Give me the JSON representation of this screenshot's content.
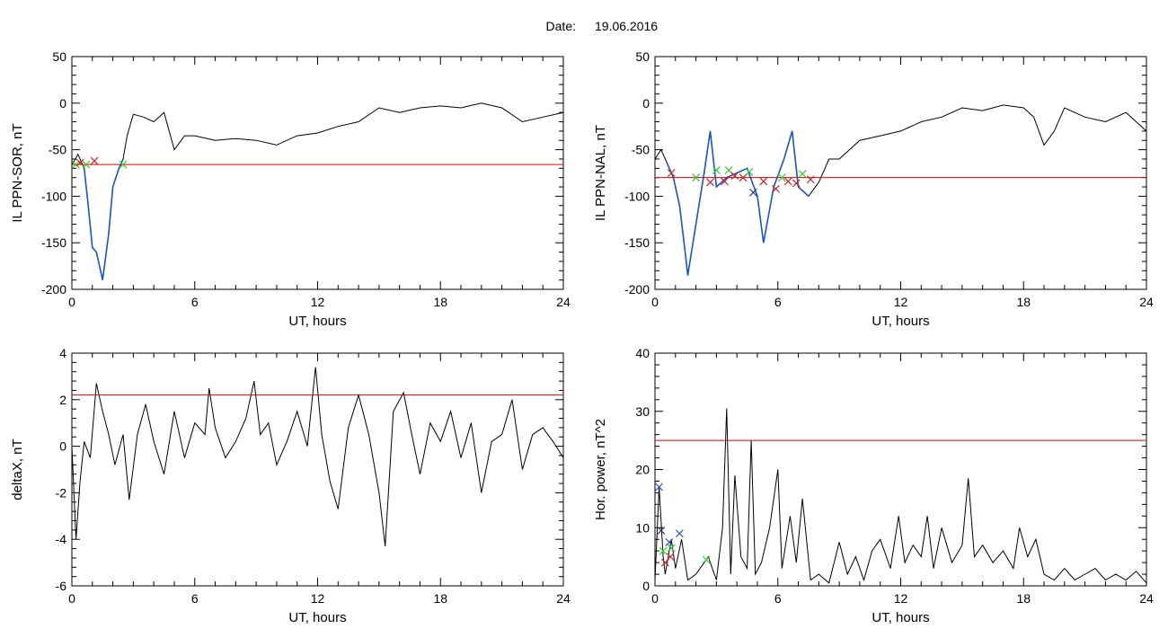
{
  "header": {
    "label": "Date:",
    "value": "19.06.2016"
  },
  "colors": {
    "data": "#000000",
    "threshold": "#e00000",
    "highlight": "#1a55c8",
    "marker_red": "#cc2222",
    "marker_green": "#33cc33",
    "marker_navy": "#2a2a88",
    "marker_blue": "#3355dd"
  },
  "chart_data": [
    {
      "id": "sor",
      "type": "line",
      "title": "",
      "xlabel": "UT, hours",
      "ylabel": "IL PPN-SOR, nT",
      "xlim": [
        0,
        24
      ],
      "ylim": [
        -200,
        50
      ],
      "xticks": [
        0,
        6,
        12,
        18,
        24
      ],
      "yticks": [
        50,
        0,
        -50,
        -100,
        -150,
        -200
      ],
      "grid": false,
      "threshold": -66,
      "x": [
        0.0,
        0.3,
        0.6,
        0.8,
        1.0,
        1.2,
        1.5,
        1.8,
        2.0,
        2.3,
        2.5,
        2.7,
        3.0,
        3.5,
        4.0,
        4.5,
        5.0,
        5.5,
        6.0,
        7.0,
        8.0,
        9.0,
        10.0,
        11.0,
        12.0,
        13.0,
        14.0,
        15.0,
        16.0,
        17.0,
        18.0,
        19.0,
        20.0,
        21.0,
        22.0,
        23.0,
        24.0
      ],
      "y": [
        -66,
        -55,
        -70,
        -110,
        -155,
        -160,
        -190,
        -140,
        -90,
        -70,
        -60,
        -35,
        -12,
        -15,
        -20,
        -10,
        -50,
        -35,
        -35,
        -40,
        -38,
        -40,
        -45,
        -35,
        -32,
        -25,
        -20,
        -5,
        -10,
        -5,
        -3,
        -5,
        0,
        -5,
        -20,
        -15,
        -10
      ],
      "highlight_range": [
        0.6,
        2.5
      ],
      "markers": [
        {
          "x": 0.2,
          "y": -66,
          "color": "marker_green"
        },
        {
          "x": 0.4,
          "y": -64,
          "color": "marker_red"
        },
        {
          "x": 0.7,
          "y": -66,
          "color": "marker_green"
        },
        {
          "x": 1.1,
          "y": -62,
          "color": "marker_red"
        },
        {
          "x": 2.5,
          "y": -66,
          "color": "marker_green"
        }
      ]
    },
    {
      "id": "nal",
      "type": "line",
      "title": "",
      "xlabel": "UT, hours",
      "ylabel": "IL PPN-NAL, nT",
      "xlim": [
        0,
        24
      ],
      "ylim": [
        -200,
        50
      ],
      "xticks": [
        0,
        6,
        12,
        18,
        24
      ],
      "yticks": [
        50,
        0,
        -50,
        -100,
        -150,
        -200
      ],
      "grid": false,
      "threshold": -80,
      "x": [
        0.0,
        0.3,
        0.6,
        0.9,
        1.2,
        1.5,
        1.6,
        2.0,
        2.4,
        2.7,
        3.0,
        3.5,
        4.0,
        4.5,
        5.0,
        5.3,
        5.8,
        6.3,
        6.7,
        7.0,
        7.5,
        8.0,
        8.5,
        9.0,
        10.0,
        11.0,
        12.0,
        13.0,
        14.0,
        15.0,
        16.0,
        17.0,
        18.0,
        18.5,
        19.0,
        19.5,
        20.0,
        21.0,
        22.0,
        23.0,
        24.0
      ],
      "y": [
        -60,
        -50,
        -65,
        -80,
        -110,
        -165,
        -185,
        -130,
        -75,
        -30,
        -90,
        -80,
        -75,
        -70,
        -100,
        -150,
        -90,
        -60,
        -30,
        -90,
        -100,
        -85,
        -60,
        -60,
        -40,
        -35,
        -30,
        -20,
        -15,
        -5,
        -8,
        -2,
        -5,
        -15,
        -45,
        -30,
        -5,
        -15,
        -20,
        -10,
        -30
      ],
      "highlight_range": [
        0.6,
        7.8
      ],
      "markers": [
        {
          "x": 0.8,
          "y": -75,
          "color": "marker_red"
        },
        {
          "x": 2.0,
          "y": -80,
          "color": "marker_green"
        },
        {
          "x": 2.7,
          "y": -85,
          "color": "marker_red"
        },
        {
          "x": 3.0,
          "y": -72,
          "color": "marker_green"
        },
        {
          "x": 3.4,
          "y": -84,
          "color": "marker_red"
        },
        {
          "x": 3.6,
          "y": -72,
          "color": "marker_green"
        },
        {
          "x": 3.9,
          "y": -78,
          "color": "marker_red"
        },
        {
          "x": 4.3,
          "y": -80,
          "color": "marker_red"
        },
        {
          "x": 4.6,
          "y": -74,
          "color": "marker_green"
        },
        {
          "x": 4.8,
          "y": -96,
          "color": "marker_navy"
        },
        {
          "x": 5.3,
          "y": -84,
          "color": "marker_red"
        },
        {
          "x": 5.9,
          "y": -92,
          "color": "marker_red"
        },
        {
          "x": 6.2,
          "y": -80,
          "color": "marker_green"
        },
        {
          "x": 6.5,
          "y": -84,
          "color": "marker_red"
        },
        {
          "x": 6.9,
          "y": -86,
          "color": "marker_red"
        },
        {
          "x": 7.2,
          "y": -76,
          "color": "marker_green"
        },
        {
          "x": 7.6,
          "y": -82,
          "color": "marker_red"
        }
      ]
    },
    {
      "id": "deltax",
      "type": "line",
      "title": "",
      "xlabel": "UT, hours",
      "ylabel": "deltaX, nT",
      "xlim": [
        0,
        24
      ],
      "ylim": [
        -6,
        4
      ],
      "xticks": [
        0,
        6,
        12,
        18,
        24
      ],
      "yticks": [
        4,
        2,
        0,
        -2,
        -4,
        -6
      ],
      "grid": false,
      "threshold": 2.2,
      "x": [
        0.0,
        0.2,
        0.4,
        0.6,
        0.9,
        1.2,
        1.5,
        1.8,
        2.1,
        2.5,
        2.8,
        3.2,
        3.6,
        4.0,
        4.5,
        5.0,
        5.5,
        6.0,
        6.5,
        6.7,
        7.0,
        7.5,
        8.0,
        8.5,
        8.9,
        9.2,
        9.6,
        10.0,
        10.5,
        11.0,
        11.5,
        11.9,
        12.2,
        12.6,
        13.0,
        13.5,
        14.0,
        14.5,
        15.0,
        15.3,
        15.7,
        16.2,
        16.6,
        17.0,
        17.5,
        18.0,
        18.5,
        19.0,
        19.5,
        20.0,
        20.5,
        21.0,
        21.5,
        22.0,
        22.5,
        23.0,
        23.5,
        24.0
      ],
      "y": [
        0.0,
        -4.0,
        -1.5,
        0.2,
        -0.5,
        2.7,
        1.5,
        0.5,
        -0.8,
        0.5,
        -2.3,
        0.5,
        1.8,
        0.2,
        -1.2,
        1.5,
        -0.5,
        1.0,
        0.5,
        2.5,
        0.8,
        -0.5,
        0.2,
        1.2,
        2.8,
        0.5,
        1.0,
        -0.8,
        0.2,
        1.5,
        0.0,
        3.4,
        0.5,
        -1.5,
        -2.7,
        0.8,
        2.2,
        0.5,
        -2.0,
        -4.3,
        1.5,
        2.3,
        0.5,
        -1.2,
        1.0,
        0.2,
        1.5,
        -0.5,
        1.0,
        -2.0,
        0.2,
        0.5,
        2.0,
        -1.0,
        0.5,
        0.8,
        0.2,
        -0.5
      ]
    },
    {
      "id": "power",
      "type": "line",
      "title": "",
      "xlabel": "UT, hours",
      "ylabel": "Hor. power, nT^2",
      "xlim": [
        0,
        24
      ],
      "ylim": [
        0,
        40
      ],
      "xticks": [
        0,
        6,
        12,
        18,
        24
      ],
      "yticks": [
        40,
        30,
        20,
        10,
        0
      ],
      "grid": false,
      "threshold": 25,
      "x": [
        0.0,
        0.2,
        0.4,
        0.5,
        0.8,
        1.0,
        1.3,
        1.6,
        2.0,
        2.6,
        3.0,
        3.3,
        3.5,
        3.7,
        3.9,
        4.2,
        4.5,
        4.7,
        4.9,
        5.2,
        5.6,
        5.8,
        6.0,
        6.2,
        6.6,
        6.9,
        7.2,
        7.6,
        8.0,
        8.5,
        9.0,
        9.4,
        9.8,
        10.2,
        10.6,
        11.0,
        11.5,
        11.9,
        12.2,
        12.6,
        13.0,
        13.3,
        13.6,
        14.0,
        14.5,
        15.0,
        15.3,
        15.6,
        16.0,
        16.5,
        17.0,
        17.5,
        17.8,
        18.2,
        18.6,
        19.0,
        19.5,
        20.0,
        20.5,
        21.0,
        21.5,
        22.0,
        22.5,
        23.0,
        23.5,
        24.0
      ],
      "y": [
        1.0,
        17.0,
        5.0,
        2.0,
        8.0,
        3.0,
        8.0,
        1.0,
        2.0,
        5.0,
        1.0,
        10.0,
        30.5,
        2.0,
        19.0,
        5.0,
        3.0,
        25.0,
        2.0,
        4.0,
        10.0,
        15.0,
        20.0,
        3.0,
        12.0,
        4.0,
        15.0,
        1.0,
        2.0,
        0.5,
        7.5,
        2.0,
        5.0,
        1.0,
        6.0,
        8.0,
        3.0,
        12.0,
        4.0,
        7.0,
        5.0,
        12.0,
        3.0,
        10.0,
        4.0,
        7.0,
        18.5,
        5.0,
        7.0,
        4.0,
        6.0,
        3.0,
        10.0,
        5.0,
        8.0,
        2.0,
        1.0,
        3.0,
        1.0,
        2.0,
        3.0,
        1.0,
        2.0,
        1.0,
        2.5,
        0.5
      ],
      "markers": [
        {
          "x": 0.2,
          "y": 17.0,
          "color": "marker_blue"
        },
        {
          "x": 0.3,
          "y": 9.5,
          "color": "marker_navy"
        },
        {
          "x": 0.4,
          "y": 6.0,
          "color": "marker_green"
        },
        {
          "x": 0.5,
          "y": 4.0,
          "color": "marker_red"
        },
        {
          "x": 0.7,
          "y": 7.5,
          "color": "marker_blue"
        },
        {
          "x": 0.75,
          "y": 5.0,
          "color": "marker_red"
        },
        {
          "x": 0.8,
          "y": 6.5,
          "color": "marker_green"
        },
        {
          "x": 1.2,
          "y": 9.0,
          "color": "marker_blue"
        },
        {
          "x": 2.5,
          "y": 4.5,
          "color": "marker_green"
        }
      ]
    }
  ]
}
